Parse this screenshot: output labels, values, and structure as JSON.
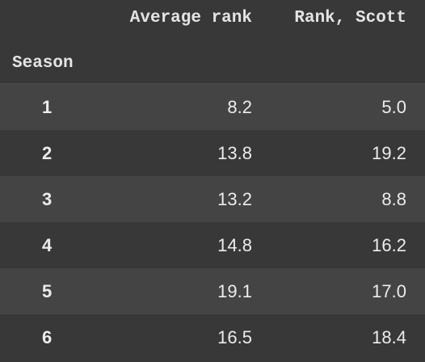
{
  "table": {
    "columns": {
      "average_rank": "Average rank",
      "rank_scott": "Rank, Scott"
    },
    "index_name": "Season",
    "rows": [
      {
        "season": "1",
        "average_rank": "8.2",
        "rank_scott": "5.0"
      },
      {
        "season": "2",
        "average_rank": "13.8",
        "rank_scott": "19.2"
      },
      {
        "season": "3",
        "average_rank": "13.2",
        "rank_scott": "8.8"
      },
      {
        "season": "4",
        "average_rank": "14.8",
        "rank_scott": "16.2"
      },
      {
        "season": "5",
        "average_rank": "19.1",
        "rank_scott": "17.0"
      },
      {
        "season": "6",
        "average_rank": "16.5",
        "rank_scott": "18.4"
      }
    ]
  },
  "colors": {
    "background": "#383838",
    "stripe": "#444444",
    "text": "#e6e6e6"
  }
}
